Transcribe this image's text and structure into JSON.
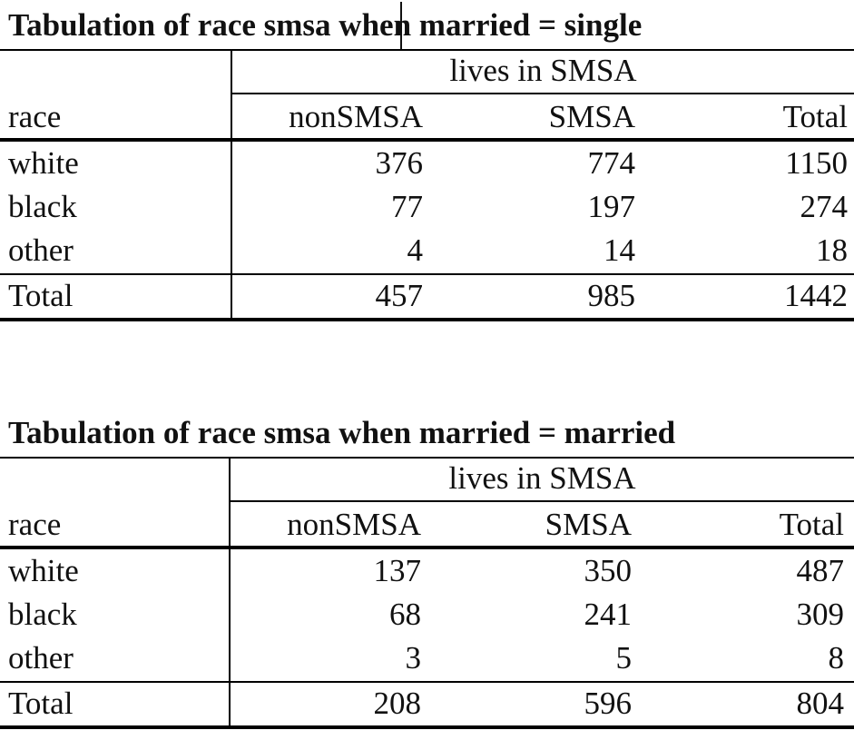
{
  "tables": [
    {
      "title_part1": "Tabulation of race smsa",
      "title_part2": " when married = single",
      "supercolumn": "lives in SMSA",
      "row_header": "race",
      "columns": [
        "nonSMSA",
        "SMSA",
        "Total"
      ],
      "rows": [
        {
          "label": "white",
          "values": [
            "376",
            "774",
            "1150"
          ]
        },
        {
          "label": "black",
          "values": [
            "77",
            "197",
            "274"
          ]
        },
        {
          "label": "other",
          "values": [
            "4",
            "14",
            "18"
          ]
        }
      ],
      "total": {
        "label": "Total",
        "values": [
          "457",
          "985",
          "1442"
        ]
      }
    },
    {
      "title": "Tabulation of race smsa when married = married",
      "supercolumn": "lives in SMSA",
      "row_header": "race",
      "columns": [
        "nonSMSA",
        "SMSA",
        "Total"
      ],
      "rows": [
        {
          "label": "white",
          "values": [
            "137",
            "350",
            "487"
          ]
        },
        {
          "label": "black",
          "values": [
            "68",
            "241",
            "309"
          ]
        },
        {
          "label": "other",
          "values": [
            "3",
            "5",
            "8"
          ]
        }
      ],
      "total": {
        "label": "Total",
        "values": [
          "208",
          "596",
          "804"
        ]
      }
    }
  ]
}
